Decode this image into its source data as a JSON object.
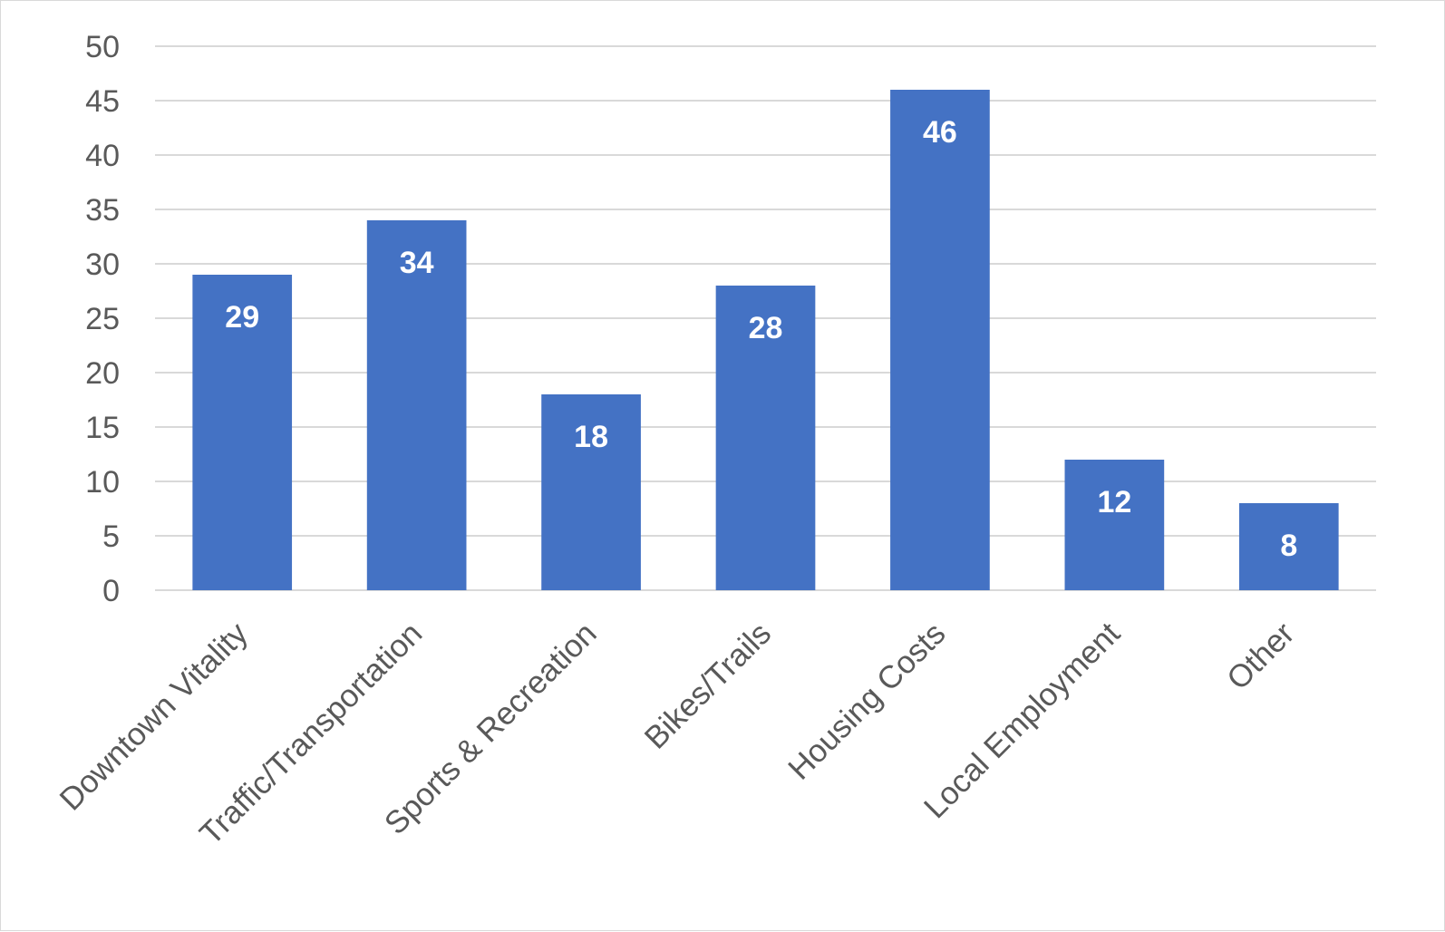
{
  "chart_data": {
    "type": "bar",
    "title": "",
    "xlabel": "",
    "ylabel": "",
    "categories": [
      "Downtown Vitality",
      "Traffic/Transportation",
      "Sports & Recreation",
      "Bikes/Trails",
      "Housing Costs",
      "Local Employment",
      "Other"
    ],
    "values": [
      29,
      34,
      18,
      28,
      46,
      12,
      8
    ],
    "data_labels": [
      "29",
      "34",
      "18",
      "28",
      "46",
      "12",
      "8"
    ],
    "ylim": [
      0,
      50
    ],
    "y_ticks": [
      0,
      5,
      10,
      15,
      20,
      25,
      30,
      35,
      40,
      45,
      50
    ],
    "grid": true,
    "legend": "none",
    "bar_color": "#4472c4",
    "grid_color": "#d9d9d9",
    "label_color": "#595959"
  }
}
